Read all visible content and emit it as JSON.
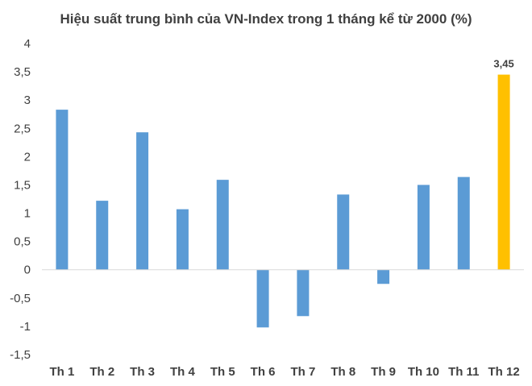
{
  "chart_data": {
    "type": "bar",
    "title": "Hiệu suất trung bình của VN-Index trong 1 tháng kể từ 2000 (%)",
    "xlabel": "",
    "ylabel": "",
    "categories": [
      "Th 1",
      "Th 2",
      "Th 3",
      "Th 4",
      "Th 5",
      "Th 6",
      "Th 7",
      "Th 8",
      "Th 9",
      "Th 10",
      "Th 11",
      "Th 12"
    ],
    "values": [
      2.83,
      1.22,
      2.43,
      1.07,
      1.59,
      -1.02,
      -0.82,
      1.33,
      -0.25,
      1.5,
      1.64,
      3.45
    ],
    "ylim": [
      -1.5,
      4
    ],
    "yticks": [
      4,
      3.5,
      3,
      2.5,
      2,
      1.5,
      1,
      0.5,
      0,
      -0.5,
      -1,
      -1.5
    ],
    "ytick_labels": [
      "4",
      "3,5",
      "3",
      "2,5",
      "2",
      "1,5",
      "1",
      "0,5",
      "0",
      "-0,5",
      "-1",
      "-1,5"
    ],
    "data_labels": [
      {
        "index": 11,
        "text": "3,45"
      }
    ],
    "grid": false,
    "legend": "none",
    "colors": {
      "bar": "#5b9bd5",
      "highlight": "#ffc000",
      "axis": "#d9d9d9",
      "text": "#404040"
    },
    "highlight_index": 11
  }
}
